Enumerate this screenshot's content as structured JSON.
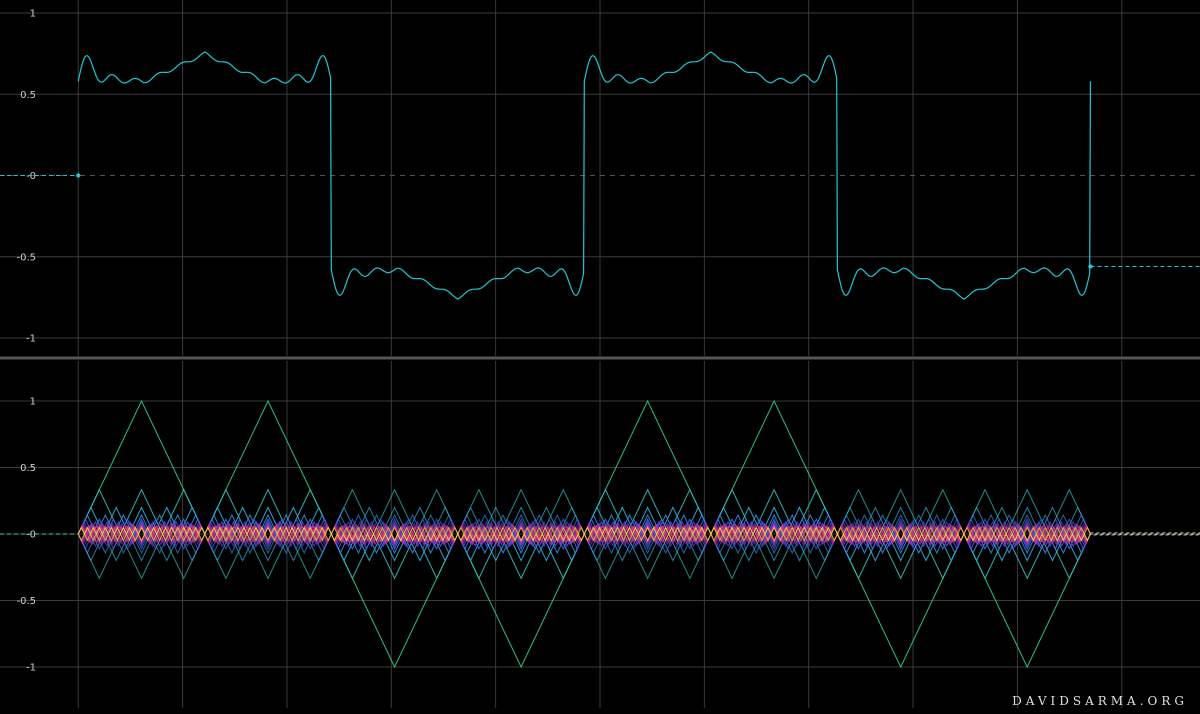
{
  "watermark": "DAVIDSARMA.ORG",
  "chart_data": [
    {
      "type": "line",
      "name": "top-panel",
      "xlim": [
        -0.75,
        10.75
      ],
      "ylim": [
        -1.1,
        1.1
      ],
      "yticks": [
        1,
        0.5,
        0,
        -0.5,
        -1
      ],
      "ytick_labels": [
        "1",
        "0.5",
        "-0",
        "-0.5",
        "-1"
      ],
      "xgrid": [
        0,
        1,
        2,
        3,
        4,
        5,
        6,
        7,
        8,
        9,
        10
      ],
      "grid": true,
      "zero_line": "dashed",
      "series": [
        {
          "kind": "partial-sum",
          "harmonics": [
            1,
            3,
            5,
            7,
            9,
            11,
            13,
            15,
            17,
            19,
            21
          ],
          "x_start": 0,
          "x_end": 9.7,
          "period": 4.85,
          "start_value": 0,
          "end_value": -0.56,
          "color": "#1fc7d4"
        }
      ]
    },
    {
      "type": "line",
      "name": "bottom-panel",
      "xlim": [
        -0.75,
        10.75
      ],
      "ylim": [
        -1.1,
        1.1
      ],
      "yticks": [
        1,
        0.5,
        0,
        -0.5,
        -1
      ],
      "ytick_labels": [
        "1",
        "0.5",
        "-0",
        "-0.5",
        "-1"
      ],
      "xgrid": [
        0,
        1,
        2,
        3,
        4,
        5,
        6,
        7,
        8,
        9,
        10
      ],
      "grid": true,
      "series": [
        {
          "kind": "triangle-harmonics",
          "harmonics": [
            1,
            3,
            5,
            7,
            9,
            11,
            13,
            15,
            17,
            19,
            21
          ],
          "amplitudes": [
            1,
            0.333,
            0.2,
            0.143,
            0.111,
            0.091,
            0.077,
            0.067,
            0.059,
            0.053,
            0.048
          ],
          "x_start": 0,
          "x_end": 9.7,
          "period": 4.85,
          "colors": [
            "#2fd68a",
            "#2fc7c0",
            "#2fb4e0",
            "#2f8ee8",
            "#3f6df0",
            "#5a46ee",
            "#8a30e0",
            "#c030b0",
            "#e83080",
            "#e84060",
            "#f0e040"
          ]
        }
      ]
    }
  ]
}
